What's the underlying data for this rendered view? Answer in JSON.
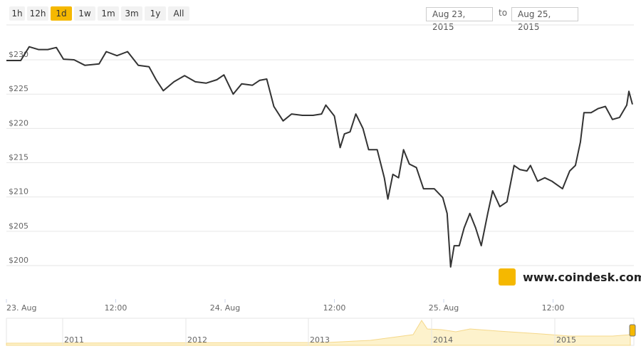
{
  "ui": {
    "buttons": [
      "1h",
      "12h",
      "1d",
      "1w",
      "1m",
      "3m",
      "1y",
      "All"
    ],
    "active_button": 2,
    "date_from": "Aug 23, 2015",
    "date_to_label": "to",
    "date_to": "Aug 25, 2015",
    "logo": "www.coindesk.com",
    "navigator_labels": [
      "2011",
      "2012",
      "2013",
      "2014",
      "2015"
    ]
  },
  "chart_data": {
    "type": "line",
    "color": "#333333",
    "grid": true,
    "x": [
      0,
      1.57,
      2.5,
      3.52,
      4.54,
      5.48,
      6.26,
      7.43,
      8.61,
      10.17,
      10.96,
      12.13,
      13.3,
      14.48,
      15.65,
      16.43,
      17.22,
      18.39,
      19.56,
      20.74,
      21.91,
      23.09,
      23.87,
      24.89,
      25.83,
      27,
      27.78,
      28.57,
      29.35,
      30.37,
      31.3,
      32.48,
      33.65,
      34.59,
      35.06,
      36,
      36.63,
      37.1,
      37.72,
      38.35,
      39.13,
      39.76,
      40.7,
      41.48,
      41.87,
      42.42,
      43.04,
      43.59,
      44.22,
      45,
      45.78,
      46.96,
      47.9,
      48.37,
      48.76,
      49.15,
      49.7,
      50.24,
      50.87,
      51.5,
      52.12,
      52.83,
      53.37,
      54.16,
      54.94,
      55.72,
      56.35,
      57.13,
      57.52,
      58.3,
      59.09,
      59.87,
      61.04,
      61.83,
      62.45,
      63,
      63.39,
      64.17,
      64.96,
      65.74,
      66.52,
      67.3,
      68.09,
      68.32,
      68.71
    ],
    "values": [
      229.9,
      229.9,
      231.9,
      231.5,
      231.5,
      231.8,
      230.1,
      230,
      229.2,
      229.4,
      231.2,
      230.6,
      231.2,
      229.2,
      229,
      227.1,
      225.5,
      226.8,
      227.7,
      226.8,
      226.6,
      227.1,
      227.8,
      225,
      226.5,
      226.3,
      227,
      227.2,
      223.2,
      221.1,
      222.1,
      221.9,
      221.9,
      222.1,
      223.4,
      221.8,
      217.2,
      219.2,
      219.5,
      222.1,
      220,
      216.9,
      216.9,
      212.8,
      209.7,
      213.3,
      212.8,
      216.9,
      214.8,
      214.3,
      211.2,
      211.2,
      209.9,
      207.6,
      199.8,
      202.9,
      202.9,
      205.5,
      207.6,
      205.5,
      202.9,
      207.6,
      210.9,
      208.6,
      209.3,
      214.6,
      214,
      213.8,
      214.6,
      212.3,
      212.8,
      212.3,
      211.2,
      213.8,
      214.6,
      218,
      222.3,
      222.3,
      222.9,
      223.2,
      221.3,
      221.6,
      223.4,
      225.4,
      223.5
    ],
    "xlim": [
      0,
      68.87
    ],
    "xticks": [
      {
        "value": 0,
        "label": "23. Aug"
      },
      {
        "value": 12,
        "label": "12:00"
      },
      {
        "value": 24,
        "label": "24. Aug"
      },
      {
        "value": 36,
        "label": "12:00"
      },
      {
        "value": 48,
        "label": "25. Aug"
      },
      {
        "value": 60,
        "label": "12:00"
      }
    ],
    "ylim": [
      195.12,
      235.09
    ],
    "yticks": [
      {
        "value": 200,
        "label": "$200"
      },
      {
        "value": 205,
        "label": "$205"
      },
      {
        "value": 210,
        "label": "$210"
      },
      {
        "value": 215,
        "label": "$215"
      },
      {
        "value": 220,
        "label": "$220"
      },
      {
        "value": 225,
        "label": "$225"
      },
      {
        "value": 230,
        "label": "$230"
      }
    ]
  }
}
